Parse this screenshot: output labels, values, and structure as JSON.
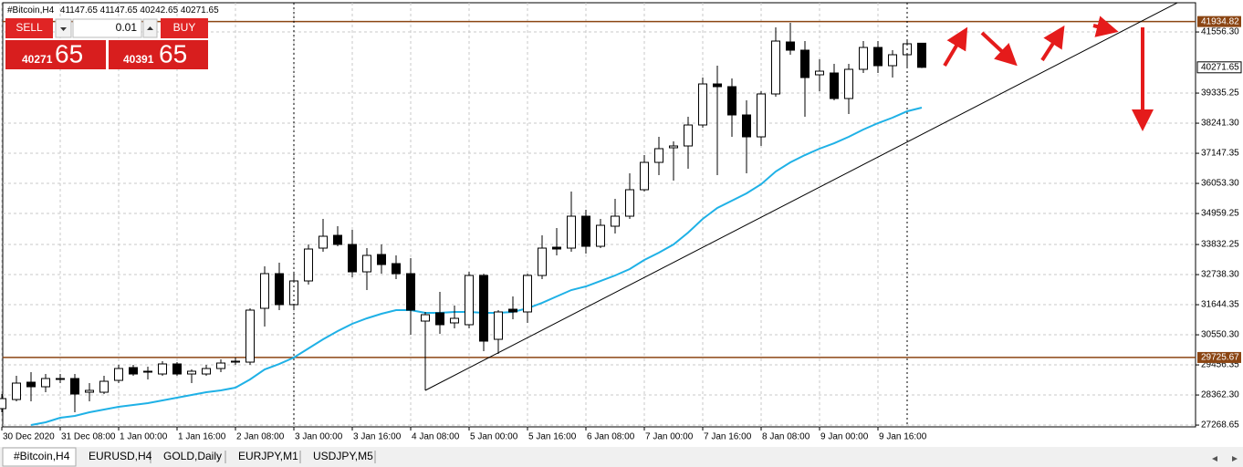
{
  "chart_data": {
    "type": "candlestick",
    "title": "#Bitcoin,H4",
    "categories": [
      "30 Dec 2020",
      null,
      null,
      null,
      "31 Dec 08:00",
      null,
      null,
      null,
      "1 Jan 00:00",
      null,
      null,
      null,
      "1 Jan 16:00",
      null,
      null,
      null,
      "2 Jan 08:00",
      null,
      null,
      null,
      "3 Jan 00:00",
      null,
      null,
      null,
      "3 Jan 16:00",
      null,
      null,
      null,
      "4 Jan 08:00",
      null,
      null,
      null,
      "5 Jan 00:00",
      null,
      null,
      null,
      "5 Jan 16:00",
      null,
      null,
      null,
      "6 Jan 08:00",
      null,
      null,
      null,
      "7 Jan 00:00",
      null,
      null,
      null,
      "7 Jan 16:00",
      null,
      null,
      null,
      "8 Jan 08:00",
      null,
      null,
      null,
      "9 Jan 00:00",
      null,
      null,
      null,
      "9 Jan 16:00",
      null,
      null,
      null
    ],
    "open": [
      27867,
      28198,
      28828,
      28662,
      28928,
      28961,
      28463,
      28463,
      28894,
      29359,
      29193,
      29126,
      29491,
      29126,
      29126,
      29325,
      29557,
      29557,
      31513,
      32773,
      31646,
      32508,
      33701,
      34165,
      33834,
      32839,
      33469,
      33138,
      32773,
      31049,
      31348,
      30983,
      30917,
      32707,
      30386,
      31480,
      31381,
      32707,
      33734,
      33701,
      34861,
      33767,
      34497,
      34861,
      35823,
      36817,
      37348,
      37414,
      38176,
      39668,
      39569,
      38541,
      37745,
      39304,
      41193,
      40895,
      40000,
      40066,
      39138,
      40199,
      40994,
      40331,
      40729,
      41147.65
    ],
    "high": [
      28397,
      29060,
      29193,
      29126,
      29126,
      29126,
      28795,
      29060,
      29458,
      29458,
      29392,
      29591,
      29557,
      29292,
      29458,
      29657,
      29723,
      31513,
      33038,
      33171,
      32773,
      33834,
      34762,
      34497,
      34364,
      33701,
      33834,
      33436,
      33337,
      31381,
      32110,
      31613,
      32839,
      32773,
      31447,
      31944,
      32773,
      34165,
      34430,
      35756,
      35093,
      34762,
      35491,
      36419,
      37082,
      37745,
      37580,
      38475,
      39900,
      40331,
      39867,
      39071,
      39403,
      41723,
      41889,
      41226,
      40563,
      40397,
      40397,
      41226,
      41226,
      40895,
      41226,
      41147.65
    ],
    "low": [
      27734,
      28132,
      28132,
      28463,
      28795,
      27734,
      28132,
      28397,
      28795,
      29060,
      28928,
      29060,
      29060,
      28795,
      29060,
      29193,
      29458,
      29458,
      30850,
      31447,
      31447,
      32375,
      33569,
      33767,
      32640,
      32176,
      32773,
      32574,
      30552,
      28530,
      30585,
      30784,
      30784,
      29955,
      29856,
      31115,
      30983,
      32574,
      33436,
      33569,
      33502,
      33701,
      34232,
      34762,
      35756,
      36353,
      36154,
      36585,
      38077,
      36353,
      37745,
      36419,
      37414,
      39204,
      40729,
      38475,
      39403,
      39071,
      38574,
      40066,
      40066,
      39900,
      40232,
      40242.65
    ],
    "close": [
      28231,
      28795,
      28662,
      28961,
      28961,
      28397,
      28530,
      28861,
      29325,
      29126,
      29226,
      29491,
      29126,
      29226,
      29325,
      29524,
      29591,
      31447,
      32773,
      31646,
      32508,
      33668,
      34132,
      33834,
      32839,
      33436,
      33104,
      32773,
      31447,
      31281,
      30917,
      31149,
      32707,
      30320,
      31381,
      31381,
      32707,
      33701,
      33668,
      34861,
      33767,
      34530,
      34861,
      35823,
      36817,
      37315,
      37414,
      38176,
      39668,
      39569,
      38541,
      37745,
      39304,
      41226,
      40895,
      39900,
      40132,
      39138,
      40199,
      40994,
      40331,
      40729,
      41127,
      40271.65
    ],
    "series": [
      {
        "color": "#1fb1e6",
        "values": [
          null,
          null,
          27270,
          27370,
          27535,
          27602,
          27734,
          27834,
          27933,
          27999,
          28066,
          28165,
          28265,
          28364,
          28463,
          28530,
          28629,
          28928,
          29292,
          29491,
          29723,
          30055,
          30386,
          30685,
          30950,
          31149,
          31314,
          31447,
          31447,
          31348,
          31348,
          31381,
          31381,
          31348,
          31348,
          31381,
          31513,
          31712,
          31944,
          32176,
          32309,
          32508,
          32707,
          32939,
          33270,
          33535,
          33834,
          34265,
          34762,
          35160,
          35425,
          35690,
          36022,
          36486,
          36817,
          37082,
          37315,
          37513,
          37745,
          38011,
          38243,
          38442,
          38674,
          38806
        ]
      }
    ],
    "trendline": {
      "x": [
        29,
        80.5
      ],
      "y": [
        28530,
        42618
      ]
    },
    "levels": [
      {
        "value": 41934.82,
        "color": "#8b4513"
      },
      {
        "value": 29725.67,
        "color": "#8b4513"
      }
    ],
    "ylim": [
      27204,
      42619
    ],
    "yticks": [
      {
        "value": 41556.3,
        "label": "41556.30"
      },
      {
        "value": 39335.25,
        "label": "39335.25"
      },
      {
        "value": 38241.3,
        "label": "38241.30"
      },
      {
        "value": 37147.35,
        "label": "37147.35"
      },
      {
        "value": 36053.3,
        "label": "36053.30"
      },
      {
        "value": 34959.25,
        "label": "34959.25"
      },
      {
        "value": 33832.25,
        "label": "33832.25"
      },
      {
        "value": 32738.3,
        "label": "32738.30"
      },
      {
        "value": 31644.35,
        "label": "31644.35"
      },
      {
        "value": 30550.3,
        "label": "30550.30"
      },
      {
        "value": 29456.35,
        "label": "29456.35"
      },
      {
        "value": 28362.3,
        "label": "28362.30"
      },
      {
        "value": 27268.65,
        "label": "27268.65"
      }
    ],
    "grid": true
  },
  "trade_panel": {
    "sell": "SELL",
    "buy": "BUY",
    "lot": "0.01",
    "bid_main": "40271",
    "bid_pips": "65",
    "ask_main": "40391",
    "ask_pips": "65"
  },
  "tabs": [
    "#Bitcoin,H4",
    "EURUSD,H4",
    "GOLD,Daily",
    "EURJPY,M1",
    "USDJPY,M5"
  ]
}
